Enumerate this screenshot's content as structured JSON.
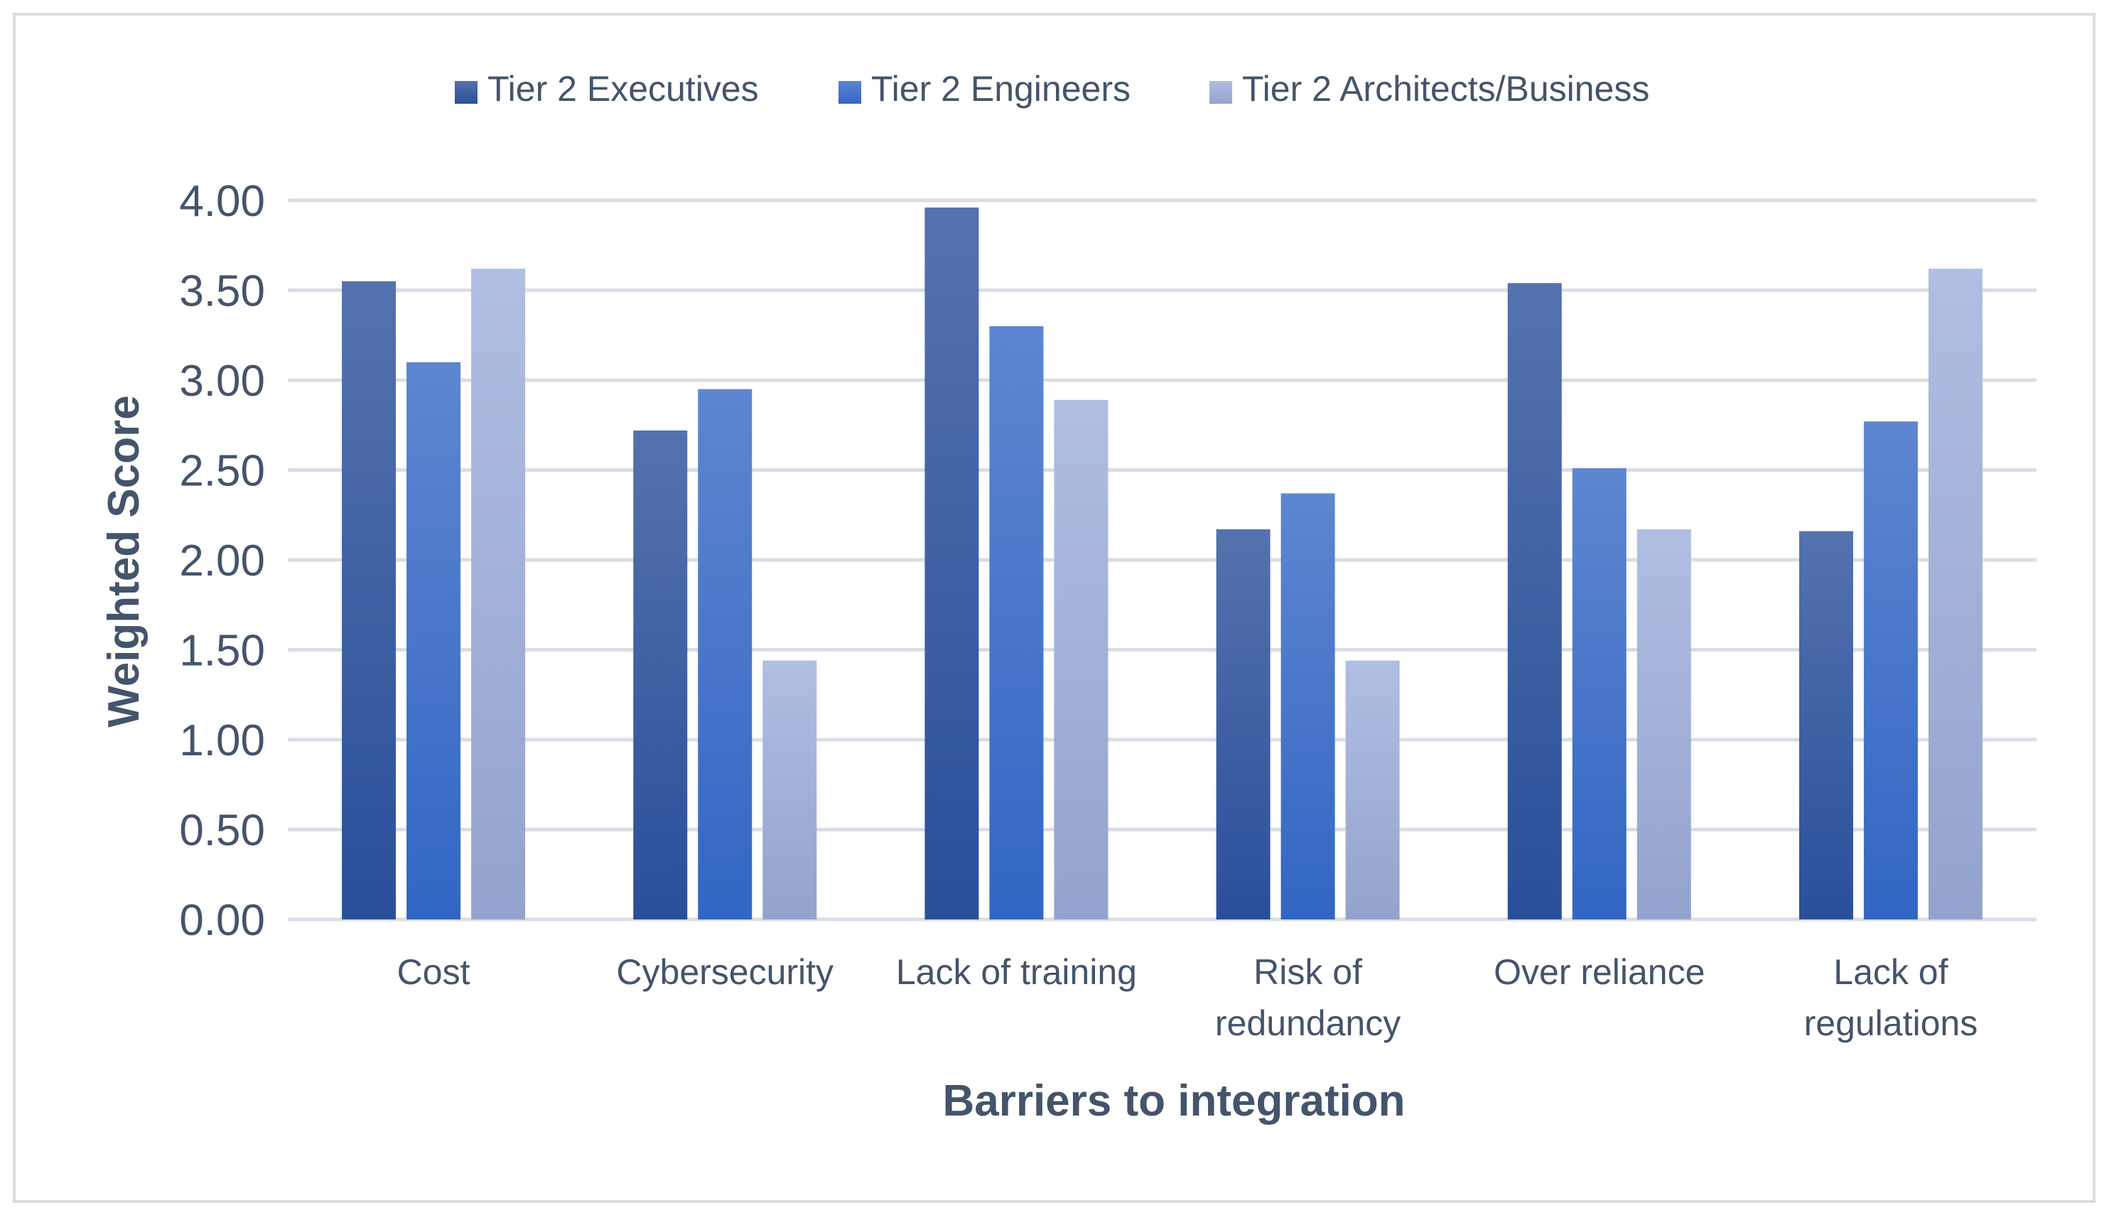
{
  "chart_data": {
    "type": "bar",
    "title": "",
    "xlabel": "Barriers to integration",
    "ylabel": "Weighted Score",
    "ylim": [
      0,
      4
    ],
    "ytick_step": 0.5,
    "ytick_labels": [
      "0.00",
      "0.50",
      "1.00",
      "1.50",
      "2.00",
      "2.50",
      "3.00",
      "3.50",
      "4.00"
    ],
    "grid": true,
    "legend_position": "top-center",
    "categories": [
      [
        "Cost"
      ],
      [
        "Cybersecurity"
      ],
      [
        "Lack of training"
      ],
      [
        "Risk of",
        "redundancy"
      ],
      [
        "Over reliance"
      ],
      [
        "Lack of",
        "regulations"
      ]
    ],
    "series": [
      {
        "name": "Tier 2 Executives",
        "colors": [
          "#5472ad",
          "#2a4f9a"
        ],
        "values": [
          3.55,
          2.72,
          3.96,
          2.17,
          3.54,
          2.16
        ]
      },
      {
        "name": "Tier 2 Engineers",
        "colors": [
          "#5e86d0",
          "#3266c4"
        ],
        "values": [
          3.1,
          2.95,
          3.3,
          2.37,
          2.51,
          2.77
        ]
      },
      {
        "name": "Tier 2 Architects/Business",
        "colors": [
          "#b0bee3",
          "#94a3cd"
        ],
        "values": [
          3.62,
          1.44,
          2.89,
          1.44,
          2.17,
          3.62
        ]
      }
    ],
    "colors": {
      "axis_text": "#44546a",
      "gridline": "#d9dde6"
    }
  }
}
